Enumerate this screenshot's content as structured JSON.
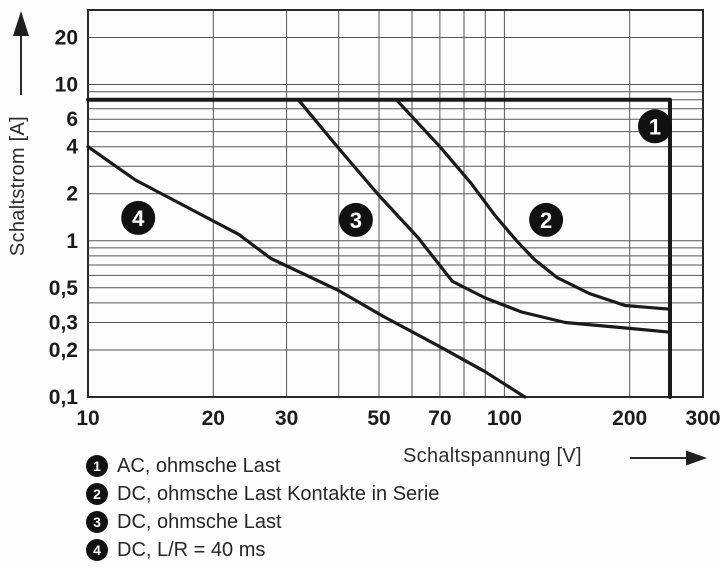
{
  "figure": {
    "kind": "relay-load-limit-curves",
    "background": "#fdfdfd"
  },
  "icons": {
    "y_axis_arrow": "up-arrow-icon",
    "x_axis_arrow": "right-arrow-icon"
  },
  "chart_data": {
    "type": "line",
    "title": "",
    "xlabel": "Schaltspannung [V]",
    "ylabel": "Schaltstrom [A]",
    "xscale": "log",
    "yscale": "log",
    "xlim": [
      10,
      300
    ],
    "ylim": [
      0.1,
      30
    ],
    "grid": true,
    "legend_position": "bottom-left",
    "xticks": [
      {
        "v": 10,
        "label": "10"
      },
      {
        "v": 20,
        "label": "20"
      },
      {
        "v": 30,
        "label": "30"
      },
      {
        "v": 50,
        "label": "50"
      },
      {
        "v": 70,
        "label": "70"
      },
      {
        "v": 100,
        "label": "100"
      },
      {
        "v": 200,
        "label": "200"
      },
      {
        "v": 300,
        "label": "300"
      }
    ],
    "yticks": [
      {
        "v": 20,
        "label": "20"
      },
      {
        "v": 10,
        "label": "10"
      },
      {
        "v": 6,
        "label": "6"
      },
      {
        "v": 4,
        "label": "4"
      },
      {
        "v": 2,
        "label": "2"
      },
      {
        "v": 1,
        "label": "1"
      },
      {
        "v": 0.5,
        "label": "0,5"
      },
      {
        "v": 0.3,
        "label": "0,3"
      },
      {
        "v": 0.2,
        "label": "0,2"
      },
      {
        "v": 0.1,
        "label": "0,1"
      }
    ],
    "x_gridlines": [
      20,
      30,
      40,
      50,
      60,
      70,
      80,
      90,
      100,
      200
    ],
    "y_gridlines": [
      20,
      10,
      9,
      8,
      7,
      6,
      5,
      4,
      3,
      2,
      1,
      0.9,
      0.8,
      0.7,
      0.6,
      0.5,
      0.4,
      0.3,
      0.2
    ],
    "colors": {
      "curve": "#1a1a1a",
      "grid": "#565656",
      "frame": "#2a2a2a",
      "badge_bg": "#111111",
      "badge_text": "#ffffff",
      "text": "#1c1c1c"
    },
    "curves": [
      {
        "badge": "1",
        "name": "AC, ohmsche Last",
        "width": 4,
        "badge_pos": [
          230,
          5.4
        ],
        "points": [
          [
            10,
            8
          ],
          [
            250,
            8
          ],
          [
            250,
            0.1
          ]
        ]
      },
      {
        "badge": "2",
        "name": "DC, ohmsche Last Kontakte in Serie",
        "width": 3.2,
        "badge_pos": [
          126,
          1.36
        ],
        "points": [
          [
            55,
            8
          ],
          [
            70,
            4
          ],
          [
            83,
            2.35
          ],
          [
            95,
            1.45
          ],
          [
            107,
            1.0
          ],
          [
            118,
            0.76
          ],
          [
            134,
            0.58
          ],
          [
            160,
            0.46
          ],
          [
            195,
            0.385
          ],
          [
            250,
            0.365
          ]
        ]
      },
      {
        "badge": "3",
        "name": "DC, ohmsche Last",
        "width": 3.2,
        "badge_pos": [
          44,
          1.36
        ],
        "points": [
          [
            32,
            8
          ],
          [
            40,
            3.9
          ],
          [
            50,
            1.95
          ],
          [
            62,
            1.05
          ],
          [
            75,
            0.55
          ],
          [
            90,
            0.43
          ],
          [
            110,
            0.35
          ],
          [
            140,
            0.3
          ],
          [
            200,
            0.275
          ],
          [
            250,
            0.26
          ]
        ]
      },
      {
        "badge": "4",
        "name": "DC, L/R = 40 ms",
        "width": 3.2,
        "badge_pos": [
          13.2,
          1.4
        ],
        "points": [
          [
            10,
            4
          ],
          [
            13,
            2.45
          ],
          [
            18,
            1.55
          ],
          [
            23,
            1.1
          ],
          [
            27.5,
            0.77
          ],
          [
            40,
            0.48
          ],
          [
            51,
            0.33
          ],
          [
            70,
            0.21
          ],
          [
            90,
            0.145
          ],
          [
            112,
            0.1
          ]
        ]
      }
    ]
  }
}
